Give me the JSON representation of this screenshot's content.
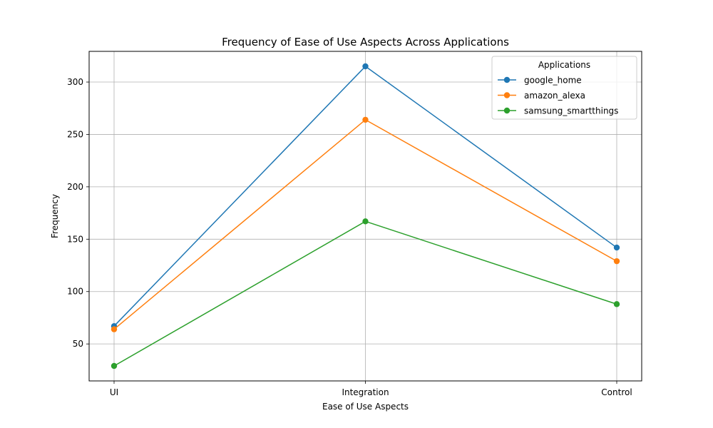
{
  "chart_data": {
    "type": "line",
    "title": "Frequency of Ease of Use Aspects Across Applications",
    "xlabel": "Ease of Use Aspects",
    "ylabel": "Frequency",
    "categories": [
      "UI",
      "Integration",
      "Control"
    ],
    "ylim": [
      14.7,
      329.3
    ],
    "yticks": [
      50,
      100,
      150,
      200,
      250,
      300
    ],
    "grid": true,
    "legend": {
      "title": "Applications",
      "placement": "top-right"
    },
    "series": [
      {
        "name": "google_home",
        "color": "#1f77b4",
        "values": [
          67,
          315,
          142
        ]
      },
      {
        "name": "amazon_alexa",
        "color": "#ff7f0e",
        "values": [
          64,
          264,
          129
        ]
      },
      {
        "name": "samsung_smartthings",
        "color": "#2ca02c",
        "values": [
          29,
          167,
          88
        ]
      }
    ]
  }
}
